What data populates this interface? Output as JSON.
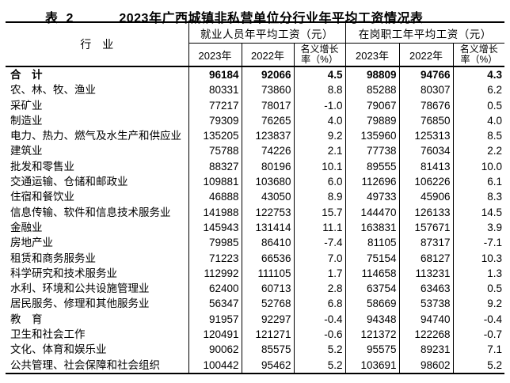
{
  "title": {
    "label": "表 2",
    "text": "2023年广西城镇非私营单位分行业年平均工资情况表"
  },
  "table": {
    "industry_header": "行　业",
    "groups": [
      {
        "header": "就业人员年平均工资（元）",
        "columns": [
          "2023年",
          "2022年",
          "名义增长\n率（%）"
        ]
      },
      {
        "header": "在岗职工年平均工资（元）",
        "columns": [
          "2023年",
          "2022年",
          "名义增长\n率（%）"
        ]
      }
    ],
    "rows": [
      {
        "industry": "合　计",
        "bold": true,
        "values": [
          "96184",
          "92066",
          "4.5",
          "98809",
          "94766",
          "4.3"
        ]
      },
      {
        "industry": "农、林、牧、渔业",
        "bold": false,
        "values": [
          "80331",
          "73860",
          "8.8",
          "85288",
          "80307",
          "6.2"
        ]
      },
      {
        "industry": "采矿业",
        "bold": false,
        "values": [
          "77217",
          "78017",
          "-1.0",
          "79067",
          "78676",
          "0.5"
        ]
      },
      {
        "industry": "制造业",
        "bold": false,
        "values": [
          "79309",
          "76265",
          "4.0",
          "79889",
          "76850",
          "4.0"
        ]
      },
      {
        "industry": "电力、热力、燃气及水生产和供应业",
        "bold": false,
        "values": [
          "135205",
          "123837",
          "9.2",
          "135960",
          "125313",
          "8.5"
        ]
      },
      {
        "industry": "建筑业",
        "bold": false,
        "values": [
          "75788",
          "74226",
          "2.1",
          "77738",
          "76034",
          "2.2"
        ]
      },
      {
        "industry": "批发和零售业",
        "bold": false,
        "values": [
          "88327",
          "80196",
          "10.1",
          "89555",
          "81413",
          "10.0"
        ]
      },
      {
        "industry": "交通运输、仓储和邮政业",
        "bold": false,
        "values": [
          "109881",
          "103680",
          "6.0",
          "112696",
          "106226",
          "6.1"
        ]
      },
      {
        "industry": "住宿和餐饮业",
        "bold": false,
        "values": [
          "46888",
          "43050",
          "8.9",
          "49733",
          "45906",
          "8.3"
        ]
      },
      {
        "industry": "信息传输、软件和信息技术服务业",
        "bold": false,
        "values": [
          "141988",
          "122753",
          "15.7",
          "144470",
          "126133",
          "14.5"
        ]
      },
      {
        "industry": "金融业",
        "bold": false,
        "values": [
          "145943",
          "131414",
          "11.1",
          "163831",
          "157671",
          "3.9"
        ]
      },
      {
        "industry": "房地产业",
        "bold": false,
        "values": [
          "79985",
          "86410",
          "-7.4",
          "81105",
          "87317",
          "-7.1"
        ]
      },
      {
        "industry": "租赁和商务服务业",
        "bold": false,
        "values": [
          "71223",
          "66536",
          "7.0",
          "75154",
          "68127",
          "10.3"
        ]
      },
      {
        "industry": "科学研究和技术服务业",
        "bold": false,
        "values": [
          "112992",
          "111105",
          "1.7",
          "114658",
          "113231",
          "1.3"
        ]
      },
      {
        "industry": "水利、环境和公共设施管理业",
        "bold": false,
        "values": [
          "62400",
          "60713",
          "2.8",
          "63754",
          "63463",
          "0.5"
        ]
      },
      {
        "industry": "居民服务、修理和其他服务业",
        "bold": false,
        "values": [
          "56347",
          "52768",
          "6.8",
          "58669",
          "53738",
          "9.2"
        ]
      },
      {
        "industry": "教　育",
        "bold": false,
        "values": [
          "91957",
          "92297",
          "-0.4",
          "94348",
          "94740",
          "-0.4"
        ]
      },
      {
        "industry": "卫生和社会工作",
        "bold": false,
        "values": [
          "120491",
          "121271",
          "-0.6",
          "121372",
          "122268",
          "-0.7"
        ]
      },
      {
        "industry": "文化、体育和娱乐业",
        "bold": false,
        "values": [
          "90062",
          "85575",
          "5.2",
          "95575",
          "89231",
          "7.1"
        ]
      },
      {
        "industry": "公共管理、社会保障和社会组织",
        "bold": false,
        "values": [
          "100442",
          "95462",
          "5.2",
          "103691",
          "98602",
          "5.2"
        ]
      }
    ]
  }
}
